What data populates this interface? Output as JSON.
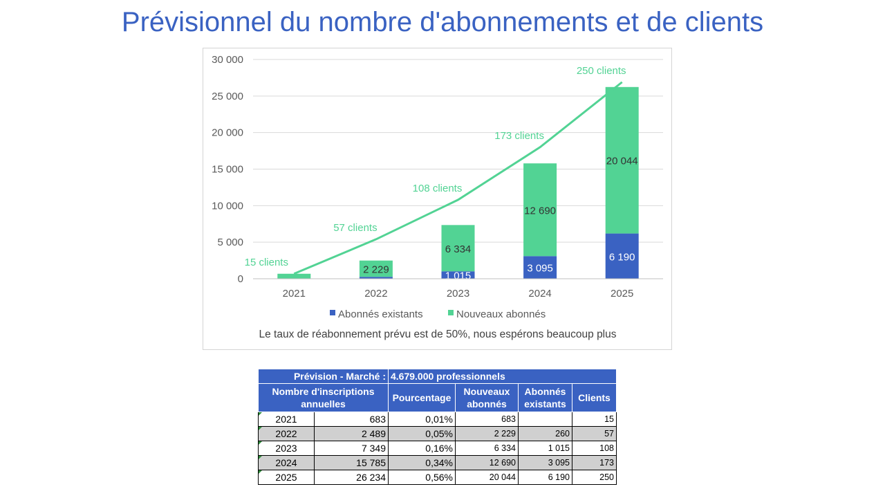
{
  "title": "Prévisionnel du nombre d'abonnements et de clients",
  "chart_data": {
    "type": "bar",
    "stacked": true,
    "categories": [
      "2021",
      "2022",
      "2023",
      "2024",
      "2025"
    ],
    "series": [
      {
        "name": "Abonnés existants",
        "color": "#3a62c2",
        "values": [
          0,
          260,
          1015,
          3095,
          6190
        ],
        "labels": [
          "",
          "",
          "1 015",
          "3 095",
          "6 190"
        ]
      },
      {
        "name": "Nouveaux abonnés",
        "color": "#52d394",
        "values": [
          683,
          2229,
          6334,
          12690,
          20044
        ],
        "labels": [
          "",
          "2 229",
          "6 334",
          "12 690",
          "20 044"
        ]
      }
    ],
    "line": {
      "color": "#52d394",
      "values": [
        683,
        5400,
        10800,
        18000,
        26900
      ],
      "labels": [
        "15 clients",
        "57 clients",
        "108 clients",
        "173 clients",
        "250 clients"
      ]
    },
    "ylim": [
      0,
      30000
    ],
    "yticks": [
      0,
      5000,
      10000,
      15000,
      20000,
      25000,
      30000
    ],
    "ytick_labels": [
      "0",
      "5 000",
      "10 000",
      "15 000",
      "20 000",
      "25 000",
      "30 000"
    ],
    "grid": true,
    "legend_position": "bottom",
    "note": "Le taux de réabonnement prévu est de 50%, nous espérons beaucoup plus"
  },
  "table": {
    "market_label": "Prévision - Marché :",
    "market_value": "4.679.000 professionnels",
    "headers": [
      "Nombre d'inscriptions annuelles",
      "Pourcentage",
      "Nouveaux abonnés",
      "Abonnés existants",
      "Clients"
    ],
    "rows": [
      {
        "year": "2021",
        "inscriptions": "683",
        "pct": "0,01%",
        "nouveaux": "683",
        "existants": "",
        "clients": "15"
      },
      {
        "year": "2022",
        "inscriptions": "2 489",
        "pct": "0,05%",
        "nouveaux": "2 229",
        "existants": "260",
        "clients": "57"
      },
      {
        "year": "2023",
        "inscriptions": "7 349",
        "pct": "0,16%",
        "nouveaux": "6 334",
        "existants": "1 015",
        "clients": "108"
      },
      {
        "year": "2024",
        "inscriptions": "15 785",
        "pct": "0,34%",
        "nouveaux": "12 690",
        "existants": "3 095",
        "clients": "173"
      },
      {
        "year": "2025",
        "inscriptions": "26 234",
        "pct": "0,56%",
        "nouveaux": "20 044",
        "existants": "6 190",
        "clients": "250"
      }
    ]
  }
}
